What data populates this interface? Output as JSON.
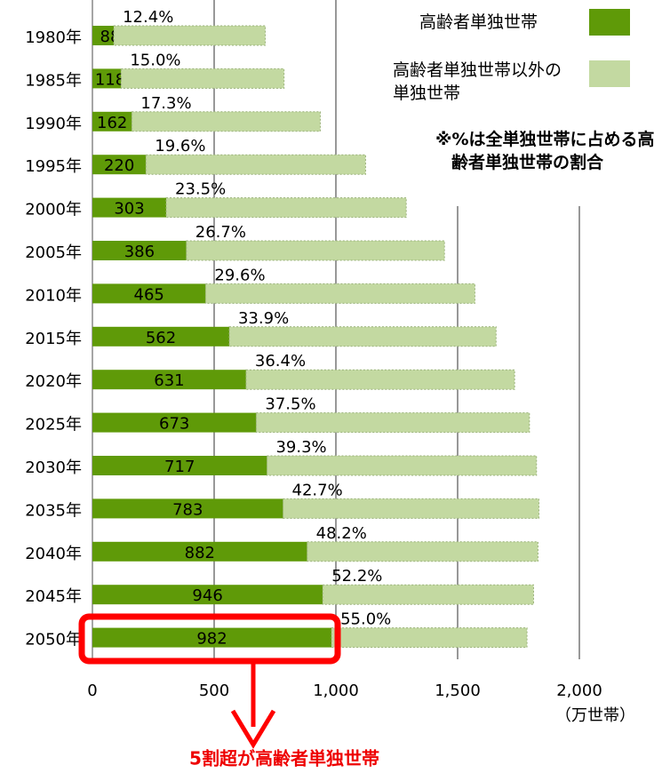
{
  "chart_data": {
    "type": "stacked-barh",
    "categories": [
      "1980年",
      "1985年",
      "1990年",
      "1995年",
      "2000年",
      "2005年",
      "2010年",
      "2015年",
      "2020年",
      "2025年",
      "2030年",
      "2035年",
      "2040年",
      "2045年",
      "2050年"
    ],
    "series": [
      {
        "name": "高齢者単独世帯",
        "color": "#5f9a08",
        "values": [
          88,
          118,
          162,
          220,
          303,
          386,
          465,
          562,
          631,
          673,
          717,
          783,
          882,
          946,
          982
        ]
      },
      {
        "name": "高齢者単独世帯以外の単独世帯",
        "color": "#c3d9a1",
        "values": [
          622,
          669,
          774,
          902,
          986,
          1060,
          1106,
          1096,
          1103,
          1122,
          1107,
          1051,
          948,
          866,
          803
        ]
      }
    ],
    "share_labels": [
      "12.4%",
      "15.0%",
      "17.3%",
      "19.6%",
      "23.5%",
      "26.7%",
      "29.6%",
      "33.9%",
      "36.4%",
      "37.5%",
      "39.3%",
      "42.7%",
      "48.2%",
      "52.2%",
      "55.0%"
    ],
    "xlim": [
      0,
      2000
    ],
    "xticks": [
      0,
      500,
      {
        "value": 1000,
        "label": "1,000"
      },
      {
        "value": 1500,
        "label": "1,500"
      },
      {
        "value": 2000,
        "label": "2,000"
      }
    ],
    "x_unit": "（万世帯）",
    "note": "※%は全単独世帯に占める高齢者単独世帯の割合",
    "callout": "5割超が高齢者単独世帯",
    "grid": true
  }
}
